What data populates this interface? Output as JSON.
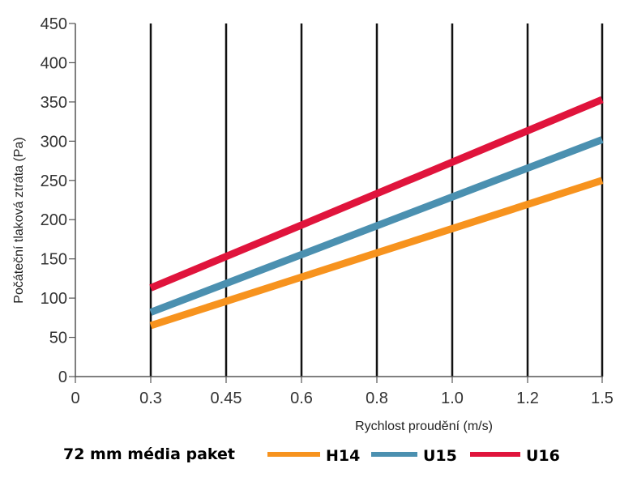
{
  "chart_data": {
    "type": "line",
    "title": "",
    "xlabel": "Rychlost proudění (m/s)",
    "ylabel": "Počáteční tlaková ztráta (Pa)",
    "x_tick_labels": [
      "0",
      "0.3",
      "0.45",
      "0.6",
      "0.8",
      "1.0",
      "1.2",
      "1.5"
    ],
    "y_tick_labels": [
      "0",
      "50",
      "100",
      "150",
      "200",
      "250",
      "300",
      "350",
      "400",
      "450"
    ],
    "ylim": [
      0,
      450
    ],
    "grid": "vertical",
    "legend_title": "72 mm média paket",
    "legend_position": "bottom",
    "series": [
      {
        "name": "H14",
        "color": "#f7931e",
        "x": [
          0.3,
          1.5
        ],
        "y": [
          65,
          250
        ]
      },
      {
        "name": "U15",
        "color": "#4b90b0",
        "x": [
          0.3,
          1.5
        ],
        "y": [
          82,
          302
        ]
      },
      {
        "name": "U16",
        "color": "#e0143c",
        "x": [
          0.3,
          1.5
        ],
        "y": [
          113,
          353
        ]
      }
    ]
  }
}
